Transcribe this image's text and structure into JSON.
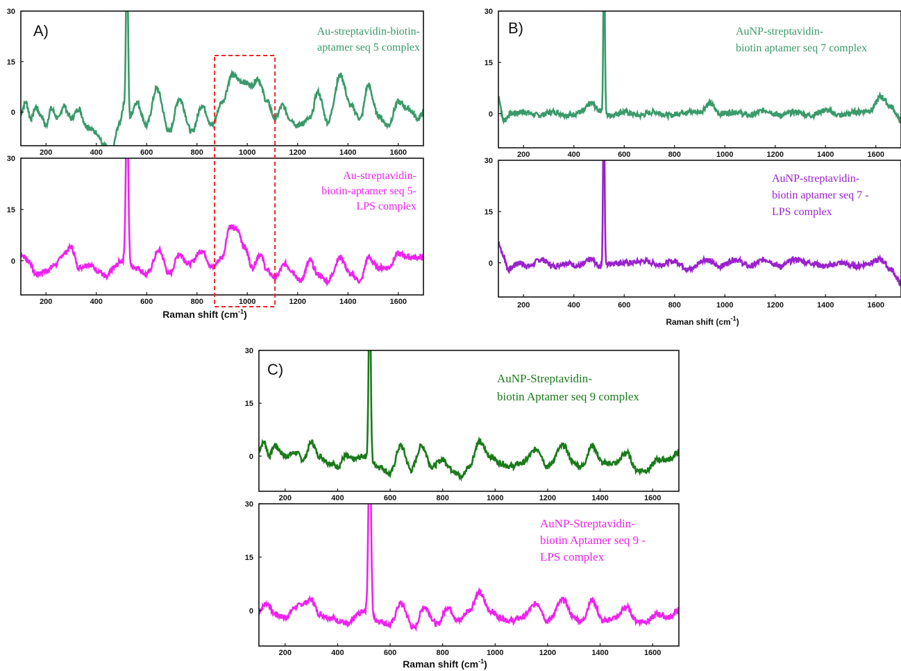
{
  "chart_data": [
    {
      "type": "line",
      "panel_label": "A)",
      "xlabel": "Raman shift (cm",
      "xlabel_sup": "-1",
      "xlabel_close": ")",
      "xlim": [
        100,
        1700
      ],
      "x_ticks": [
        200,
        400,
        600,
        800,
        1000,
        1200,
        1400,
        1600
      ],
      "highlight_region": [
        870,
        1110
      ],
      "subplots": [
        {
          "series_name_lines": [
            "Au-streptavidin-biotin-",
            "aptamer seq 5 complex"
          ],
          "color": "#3a9a6a",
          "ylim": [
            -10,
            30
          ],
          "y_ticks": [
            0,
            15,
            30
          ],
          "baseline": [
            [
              100,
              0
            ],
            [
              120,
              3
            ],
            [
              140,
              -2
            ],
            [
              160,
              1.5
            ],
            [
              180,
              -1
            ],
            [
              200,
              -4
            ],
            [
              220,
              1
            ],
            [
              250,
              -2
            ],
            [
              270,
              2
            ],
            [
              300,
              -2
            ],
            [
              330,
              1
            ],
            [
              360,
              -4
            ],
            [
              400,
              -6
            ],
            [
              430,
              -10
            ],
            [
              460,
              -12
            ],
            [
              490,
              -4
            ],
            [
              510,
              2
            ],
            [
              530,
              -2
            ],
            [
              560,
              3
            ],
            [
              600,
              -4
            ],
            [
              640,
              7
            ],
            [
              690,
              -6
            ],
            [
              730,
              4
            ],
            [
              780,
              -6
            ],
            [
              820,
              2
            ],
            [
              860,
              -4
            ],
            [
              900,
              3
            ],
            [
              940,
              11
            ],
            [
              980,
              9
            ],
            [
              1020,
              8
            ],
            [
              1040,
              10
            ],
            [
              1080,
              3
            ],
            [
              1110,
              -2
            ],
            [
              1140,
              2
            ],
            [
              1170,
              -2
            ],
            [
              1200,
              -4
            ],
            [
              1250,
              -2
            ],
            [
              1280,
              6
            ],
            [
              1320,
              -3
            ],
            [
              1370,
              11
            ],
            [
              1410,
              2
            ],
            [
              1450,
              -2
            ],
            [
              1480,
              8
            ],
            [
              1520,
              -1
            ],
            [
              1560,
              -4
            ],
            [
              1600,
              3
            ],
            [
              1640,
              1
            ],
            [
              1680,
              -2
            ],
            [
              1700,
              0
            ]
          ],
          "peaks": [
            {
              "x": 522,
              "height": 50,
              "width": 4
            }
          ]
        },
        {
          "series_name_lines": [
            "Au-streptavidin-",
            "biotin-aptamer seq 5-",
            "LPS complex"
          ],
          "color": "#ee22ee",
          "ylim": [
            -10,
            30
          ],
          "y_ticks": [
            0,
            15,
            30
          ],
          "baseline": [
            [
              100,
              2
            ],
            [
              130,
              0
            ],
            [
              160,
              -4
            ],
            [
              200,
              -3
            ],
            [
              240,
              -1
            ],
            [
              270,
              2
            ],
            [
              300,
              4
            ],
            [
              330,
              -2
            ],
            [
              370,
              -1
            ],
            [
              410,
              -3
            ],
            [
              440,
              -5
            ],
            [
              470,
              -2
            ],
            [
              500,
              0
            ],
            [
              560,
              -2
            ],
            [
              600,
              -4
            ],
            [
              650,
              3
            ],
            [
              690,
              -4
            ],
            [
              730,
              2
            ],
            [
              770,
              -1
            ],
            [
              820,
              3
            ],
            [
              860,
              -2
            ],
            [
              900,
              1
            ],
            [
              930,
              10
            ],
            [
              960,
              9
            ],
            [
              990,
              4
            ],
            [
              1020,
              -2
            ],
            [
              1050,
              2
            ],
            [
              1080,
              -3
            ],
            [
              1110,
              -5
            ],
            [
              1150,
              -1
            ],
            [
              1180,
              -3
            ],
            [
              1210,
              -6
            ],
            [
              1250,
              0
            ],
            [
              1280,
              -4
            ],
            [
              1320,
              -6
            ],
            [
              1370,
              1
            ],
            [
              1410,
              -4
            ],
            [
              1450,
              -6
            ],
            [
              1480,
              1
            ],
            [
              1520,
              -2
            ],
            [
              1560,
              -2
            ],
            [
              1600,
              2
            ],
            [
              1650,
              1
            ],
            [
              1700,
              1
            ]
          ],
          "peaks": [
            {
              "x": 522,
              "height": 45,
              "width": 5
            }
          ]
        }
      ]
    },
    {
      "type": "line",
      "panel_label": "B)",
      "xlabel": "Raman shift (cm",
      "xlabel_sup": "-1",
      "xlabel_close": ")",
      "xlim": [
        100,
        1700
      ],
      "x_ticks": [
        200,
        400,
        600,
        800,
        1000,
        1200,
        1400,
        1600
      ],
      "subplots": [
        {
          "series_name_lines": [
            "AuNP-streptavidin-",
            "biotin aptamer seq 7 complex"
          ],
          "color": "#3a9a6a",
          "ylim": [
            -10,
            30
          ],
          "y_ticks": [
            0,
            15,
            30
          ],
          "baseline": [
            [
              100,
              5
            ],
            [
              120,
              -2
            ],
            [
              150,
              0
            ],
            [
              200,
              0.5
            ],
            [
              260,
              -0.5
            ],
            [
              320,
              0.5
            ],
            [
              380,
              -0.5
            ],
            [
              430,
              0.5
            ],
            [
              470,
              3
            ],
            [
              500,
              1
            ],
            [
              540,
              -0.5
            ],
            [
              600,
              0.5
            ],
            [
              660,
              -0.5
            ],
            [
              720,
              0.5
            ],
            [
              780,
              -0.5
            ],
            [
              840,
              0.5
            ],
            [
              900,
              0.5
            ],
            [
              940,
              3
            ],
            [
              980,
              0
            ],
            [
              1040,
              0.5
            ],
            [
              1100,
              -0.5
            ],
            [
              1160,
              1
            ],
            [
              1220,
              -0.5
            ],
            [
              1280,
              0.5
            ],
            [
              1340,
              -0.5
            ],
            [
              1400,
              1
            ],
            [
              1460,
              -0.5
            ],
            [
              1520,
              0.5
            ],
            [
              1580,
              1
            ],
            [
              1620,
              5
            ],
            [
              1660,
              2
            ],
            [
              1700,
              -2
            ]
          ],
          "peaks": [
            {
              "x": 520,
              "height": 50,
              "width": 3
            }
          ]
        },
        {
          "series_name_lines": [
            "AuNP-streptavidin-",
            "biotin aptamer seq 7 -",
            "LPS complex"
          ],
          "color": "#9a22cc",
          "ylim": [
            -10,
            30
          ],
          "y_ticks": [
            0,
            15,
            30
          ],
          "baseline": [
            [
              100,
              6
            ],
            [
              120,
              2
            ],
            [
              140,
              -2
            ],
            [
              180,
              0
            ],
            [
              220,
              -1
            ],
            [
              270,
              1
            ],
            [
              320,
              -1
            ],
            [
              370,
              0
            ],
            [
              420,
              -1
            ],
            [
              470,
              1
            ],
            [
              500,
              -1
            ],
            [
              560,
              0
            ],
            [
              620,
              0
            ],
            [
              680,
              0.5
            ],
            [
              740,
              -0.5
            ],
            [
              800,
              0.5
            ],
            [
              860,
              -2
            ],
            [
              920,
              1
            ],
            [
              980,
              -1
            ],
            [
              1040,
              1
            ],
            [
              1100,
              -1
            ],
            [
              1160,
              1
            ],
            [
              1220,
              -1
            ],
            [
              1280,
              1
            ],
            [
              1340,
              0
            ],
            [
              1400,
              -1
            ],
            [
              1460,
              0
            ],
            [
              1520,
              -1
            ],
            [
              1580,
              0
            ],
            [
              1620,
              1
            ],
            [
              1660,
              -2
            ],
            [
              1700,
              -6
            ]
          ],
          "peaks": [
            {
              "x": 519,
              "height": 50,
              "width": 3
            }
          ]
        }
      ]
    },
    {
      "type": "line",
      "panel_label": "C)",
      "xlabel": "Raman shift (cm",
      "xlabel_sup": "-1",
      "xlabel_close": ")",
      "xlim": [
        100,
        1700
      ],
      "x_ticks": [
        200,
        400,
        600,
        800,
        1000,
        1200,
        1400,
        1600
      ],
      "subplots": [
        {
          "series_name_lines": [
            "AuNP-Streptavidin-",
            "biotin Aptamer seq 9 complex"
          ],
          "color": "#1a7a1a",
          "ylim": [
            -10,
            30
          ],
          "y_ticks": [
            0,
            15,
            30
          ],
          "baseline": [
            [
              100,
              2
            ],
            [
              120,
              4
            ],
            [
              140,
              0
            ],
            [
              160,
              3
            ],
            [
              200,
              0
            ],
            [
              240,
              1
            ],
            [
              270,
              -1
            ],
            [
              300,
              4
            ],
            [
              330,
              0
            ],
            [
              370,
              -2
            ],
            [
              400,
              -3
            ],
            [
              430,
              0
            ],
            [
              460,
              -1
            ],
            [
              500,
              0
            ],
            [
              560,
              -3
            ],
            [
              600,
              -5
            ],
            [
              640,
              3
            ],
            [
              680,
              -4
            ],
            [
              720,
              3
            ],
            [
              760,
              -3
            ],
            [
              800,
              -1
            ],
            [
              840,
              -4
            ],
            [
              870,
              -6
            ],
            [
              900,
              -3
            ],
            [
              940,
              4
            ],
            [
              980,
              0
            ],
            [
              1020,
              -2
            ],
            [
              1060,
              -3
            ],
            [
              1100,
              -2
            ],
            [
              1160,
              2
            ],
            [
              1200,
              -3
            ],
            [
              1260,
              3
            ],
            [
              1300,
              -2
            ],
            [
              1330,
              -3
            ],
            [
              1370,
              3
            ],
            [
              1410,
              -2
            ],
            [
              1460,
              -2
            ],
            [
              1500,
              1
            ],
            [
              1540,
              -4
            ],
            [
              1580,
              -4
            ],
            [
              1620,
              -1
            ],
            [
              1660,
              -1
            ],
            [
              1700,
              1
            ]
          ],
          "peaks": [
            {
              "x": 522,
              "height": 50,
              "width": 4
            }
          ]
        },
        {
          "series_name_lines": [
            "AuNP-Streptavidin-",
            "biotin Aptamer seq 9 -",
            "LPS complex"
          ],
          "color": "#ee22ee",
          "ylim": [
            -10,
            30
          ],
          "y_ticks": [
            0,
            15,
            30
          ],
          "baseline": [
            [
              100,
              0
            ],
            [
              130,
              2
            ],
            [
              160,
              -1
            ],
            [
              200,
              -2
            ],
            [
              240,
              1
            ],
            [
              270,
              2
            ],
            [
              300,
              3
            ],
            [
              330,
              -1
            ],
            [
              370,
              -2
            ],
            [
              410,
              -3
            ],
            [
              440,
              -4
            ],
            [
              480,
              -1
            ],
            [
              500,
              0
            ],
            [
              560,
              -3
            ],
            [
              600,
              -4
            ],
            [
              640,
              2
            ],
            [
              690,
              -5
            ],
            [
              730,
              1
            ],
            [
              780,
              -4
            ],
            [
              820,
              1
            ],
            [
              860,
              -3
            ],
            [
              900,
              0
            ],
            [
              940,
              5
            ],
            [
              980,
              0
            ],
            [
              1020,
              -2
            ],
            [
              1060,
              -3
            ],
            [
              1100,
              -2
            ],
            [
              1160,
              2
            ],
            [
              1200,
              -3
            ],
            [
              1260,
              3
            ],
            [
              1300,
              -2
            ],
            [
              1330,
              -3
            ],
            [
              1370,
              3
            ],
            [
              1410,
              -3
            ],
            [
              1460,
              -2
            ],
            [
              1500,
              1
            ],
            [
              1540,
              -3
            ],
            [
              1580,
              -3
            ],
            [
              1620,
              -1
            ],
            [
              1660,
              -2
            ],
            [
              1700,
              0
            ]
          ],
          "peaks": [
            {
              "x": 522,
              "height": 50,
              "width": 5
            }
          ]
        }
      ]
    }
  ]
}
